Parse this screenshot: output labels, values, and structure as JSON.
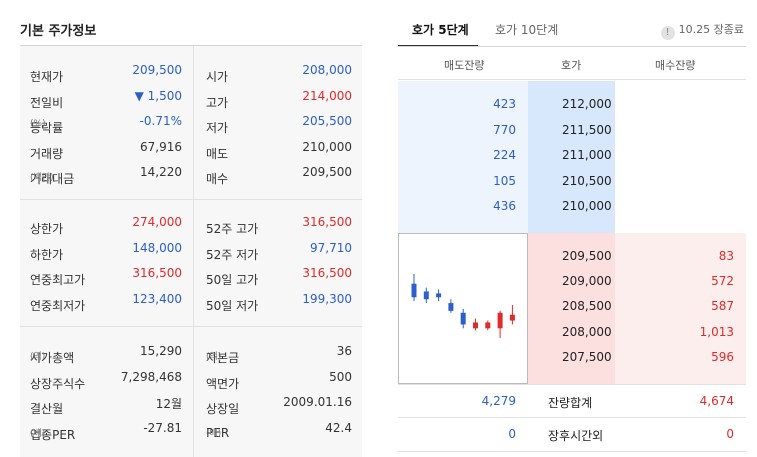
{
  "basic_info": {
    "title": "기본 주가정보",
    "groups": [
      [
        {
          "l1": "현재가",
          "l1_sub": "",
          "v1": "209,500",
          "v1_color": "blue",
          "l2": "시가",
          "l2_sub": "",
          "v2": "208,000",
          "v2_color": "blue"
        },
        {
          "l1": "전일비",
          "l1_sub": "",
          "v1": "▼ 1,500",
          "v1_color": "blue",
          "l2": "고가",
          "l2_sub": "",
          "v2": "214,000",
          "v2_color": "red"
        },
        {
          "l1": "등락률",
          "l1_sub": "(%)",
          "v1": "-0.71%",
          "v1_color": "blue",
          "l2": "저가",
          "l2_sub": "",
          "v2": "205,500",
          "v2_color": "blue"
        },
        {
          "l1": "거래량",
          "l1_sub": "",
          "v1": "67,916",
          "v1_color": "dark",
          "l2": "매도",
          "l2_sub": "",
          "v2": "210,000",
          "v2_color": "dark"
        },
        {
          "l1": "거래대금",
          "l1_sub": "(백만)",
          "v1": "14,220",
          "v1_color": "dark",
          "l2": "매수",
          "l2_sub": "",
          "v2": "209,500",
          "v2_color": "dark"
        }
      ],
      [
        {
          "l1": "상한가",
          "l1_sub": "",
          "v1": "274,000",
          "v1_color": "red",
          "l2": "52주 고가",
          "l2_sub": "",
          "v2": "316,500",
          "v2_color": "red"
        },
        {
          "l1": "하한가",
          "l1_sub": "",
          "v1": "148,000",
          "v1_color": "blue",
          "l2": "52주 저가",
          "l2_sub": "",
          "v2": "97,710",
          "v2_color": "blue"
        },
        {
          "l1": "연중최고가",
          "l1_sub": "",
          "v1": "316,500",
          "v1_color": "red",
          "l2": "50일 고가",
          "l2_sub": "",
          "v2": "316,500",
          "v2_color": "red"
        },
        {
          "l1": "연중최저가",
          "l1_sub": "",
          "v1": "123,400",
          "v1_color": "blue",
          "l2": "50일 저가",
          "l2_sub": "",
          "v2": "199,300",
          "v2_color": "blue"
        }
      ],
      [
        {
          "l1": "시가총액",
          "l1_sub": "(억)",
          "v1": "15,290",
          "v1_color": "dark",
          "l2": "자본금",
          "l2_sub": "(억)",
          "v2": "36",
          "v2_color": "dark"
        },
        {
          "l1": "상장주식수",
          "l1_sub": "",
          "v1": "7,298,468",
          "v1_color": "dark",
          "l2": "액면가",
          "l2_sub": "",
          "v2": "500",
          "v2_color": "dark"
        },
        {
          "l1": "결산월",
          "l1_sub": "",
          "v1": "12월",
          "v1_color": "dark",
          "l2": "상장일",
          "l2_sub": "",
          "v2": "2009.01.16",
          "v2_color": "dark"
        },
        {
          "l1": "업종PER",
          "l1_sub": "(배)",
          "v1": "-27.81",
          "v1_color": "dark",
          "l2": "PER",
          "l2_sub": "(배)",
          "v2": "42.4",
          "v2_color": "dark"
        }
      ]
    ]
  },
  "orderbook": {
    "tabs": [
      {
        "label": "호가 5단계",
        "active": true
      },
      {
        "label": "호가 10단계",
        "active": false
      }
    ],
    "info_icon": "info-icon",
    "status": "10.25 장종료",
    "headers": {
      "ask_volume": "매도잔량",
      "price": "호가",
      "bid_volume": "매수잔량"
    },
    "asks": [
      {
        "volume": "423",
        "price": "212,000"
      },
      {
        "volume": "770",
        "price": "211,500"
      },
      {
        "volume": "224",
        "price": "211,000"
      },
      {
        "volume": "105",
        "price": "210,500"
      },
      {
        "volume": "436",
        "price": "210,000"
      }
    ],
    "bids": [
      {
        "price": "209,500",
        "volume": "83"
      },
      {
        "price": "209,000",
        "volume": "572"
      },
      {
        "price": "208,500",
        "volume": "587"
      },
      {
        "price": "208,000",
        "volume": "1,013"
      },
      {
        "price": "207,500",
        "volume": "596"
      }
    ],
    "total": {
      "ask": "4,279",
      "label": "잔량합계",
      "bid": "4,674"
    },
    "after_hours": {
      "ask": "0",
      "label": "장후시간외",
      "bid": "0"
    },
    "mini_chart": {
      "colors": {
        "down": "#2c5fc9",
        "up": "#e02b2b"
      },
      "candles": [
        {
          "open": 216000,
          "close": 212500,
          "high": 218500,
          "low": 211500,
          "dir": "down"
        },
        {
          "open": 214000,
          "close": 212000,
          "high": 215000,
          "low": 211000,
          "dir": "down"
        },
        {
          "open": 213500,
          "close": 212500,
          "high": 214500,
          "low": 211500,
          "dir": "down"
        },
        {
          "open": 211000,
          "close": 209000,
          "high": 212000,
          "low": 208500,
          "dir": "down"
        },
        {
          "open": 208500,
          "close": 205500,
          "high": 209500,
          "low": 204500,
          "dir": "down"
        },
        {
          "open": 204500,
          "close": 206000,
          "high": 207000,
          "low": 204000,
          "dir": "up"
        },
        {
          "open": 204500,
          "close": 206000,
          "high": 206500,
          "low": 204000,
          "dir": "up"
        },
        {
          "open": 204500,
          "close": 208500,
          "high": 209000,
          "low": 202000,
          "dir": "up"
        },
        {
          "open": 206500,
          "close": 208000,
          "high": 210500,
          "low": 205500,
          "dir": "up"
        }
      ]
    }
  }
}
